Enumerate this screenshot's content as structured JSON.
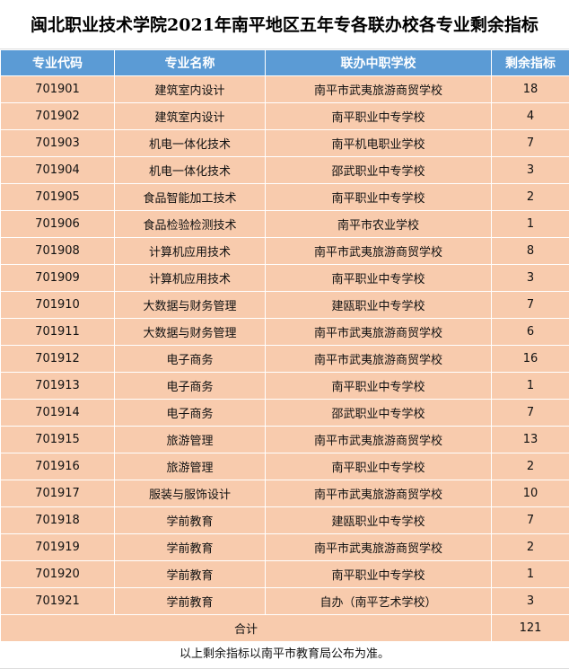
{
  "title": "闽北职业技术学院2021年南平地区五年专各联办校各专业剩余指标",
  "headers": [
    "专业代码",
    "专业名称",
    "联办中职学校",
    "剩余指标"
  ],
  "rows": [
    [
      "701901",
      "建筑室内设计",
      "南平市武夷旅游商贸学校",
      "18"
    ],
    [
      "701902",
      "建筑室内设计",
      "南平职业中专学校",
      "4"
    ],
    [
      "701903",
      "机电一体化技术",
      "南平机电职业学校",
      "7"
    ],
    [
      "701904",
      "机电一体化技术",
      "邵武职业中专学校",
      "3"
    ],
    [
      "701905",
      "食品智能加工技术",
      "南平职业中专学校",
      "2"
    ],
    [
      "701906",
      "食品检验检测技术",
      "南平市农业学校",
      "1"
    ],
    [
      "701908",
      "计算机应用技术",
      "南平市武夷旅游商贸学校",
      "8"
    ],
    [
      "701909",
      "计算机应用技术",
      "南平职业中专学校",
      "3"
    ],
    [
      "701910",
      "大数据与财务管理",
      "建瓯职业中专学校",
      "7"
    ],
    [
      "701911",
      "大数据与财务管理",
      "南平市武夷旅游商贸学校",
      "6"
    ],
    [
      "701912",
      "电子商务",
      "南平市武夷旅游商贸学校",
      "16"
    ],
    [
      "701913",
      "电子商务",
      "南平职业中专学校",
      "1"
    ],
    [
      "701914",
      "电子商务",
      "邵武职业中专学校",
      "7"
    ],
    [
      "701915",
      "旅游管理",
      "南平市武夷旅游商贸学校",
      "13"
    ],
    [
      "701916",
      "旅游管理",
      "南平职业中专学校",
      "2"
    ],
    [
      "701917",
      "服装与服饰设计",
      "南平市武夷旅游商贸学校",
      "10"
    ],
    [
      "701918",
      "学前教育",
      "建瓯职业中专学校",
      "7"
    ],
    [
      "701919",
      "学前教育",
      "南平市武夷旅游商贸学校",
      "2"
    ],
    [
      "701920",
      "学前教育",
      "南平职业中专学校",
      "1"
    ],
    [
      "701921",
      "学前教育",
      "自办（南平艺术学校）",
      "3"
    ]
  ],
  "total": {
    "label": "合计",
    "value": "121"
  },
  "note": "以上剩余指标以南平市教育局公布为准。",
  "colors": {
    "header_bg": "#5B9BD5",
    "row_bg": "#F8CBAD"
  }
}
